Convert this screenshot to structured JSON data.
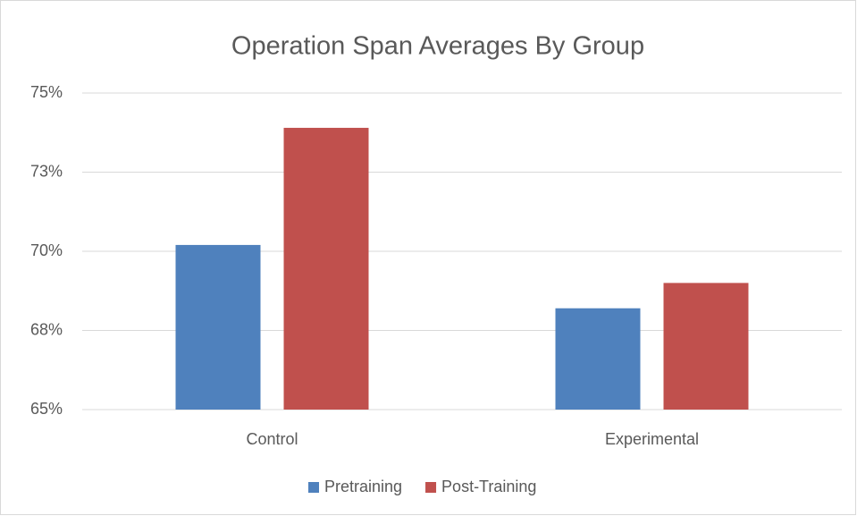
{
  "chart_data": {
    "type": "bar",
    "title": "Operation Span Averages By Group",
    "categories": [
      "Control",
      "Experimental"
    ],
    "series": [
      {
        "name": "Pretraining",
        "color": "#4f81bd",
        "values": [
          70.2,
          68.2
        ]
      },
      {
        "name": "Post-Training",
        "color": "#c0504d",
        "values": [
          73.9,
          69.0
        ]
      }
    ],
    "ylim": [
      65,
      75
    ],
    "yticks": [
      {
        "value": 65,
        "label": "65%"
      },
      {
        "value": 67.5,
        "label": "68%"
      },
      {
        "value": 70,
        "label": "70%"
      },
      {
        "value": 72.5,
        "label": "73%"
      },
      {
        "value": 75,
        "label": "75%"
      }
    ],
    "grid": true,
    "legend": "bottom"
  }
}
